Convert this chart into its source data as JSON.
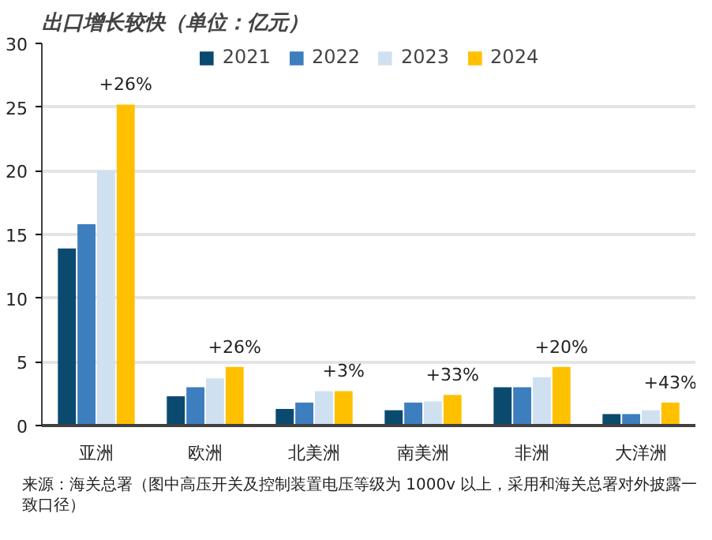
{
  "chart_data": {
    "type": "bar",
    "title": "出口增长较快（单位：亿元）",
    "categories": [
      "亚洲",
      "欧洲",
      "北美洲",
      "南美洲",
      "非洲",
      "大洋洲"
    ],
    "series": [
      {
        "name": "2021",
        "color": "#0b4a6f",
        "values": [
          13.9,
          2.3,
          1.3,
          1.2,
          3.0,
          0.9
        ]
      },
      {
        "name": "2022",
        "color": "#3d7ebf",
        "values": [
          15.8,
          3.0,
          1.8,
          1.8,
          3.0,
          0.9
        ]
      },
      {
        "name": "2023",
        "color": "#cfe0f1",
        "values": [
          20.0,
          3.7,
          2.7,
          1.9,
          3.8,
          1.2
        ]
      },
      {
        "name": "2024",
        "color": "#ffc000",
        "values": [
          25.2,
          4.6,
          2.7,
          2.4,
          4.6,
          1.8
        ]
      }
    ],
    "ylim": [
      0,
      30
    ],
    "yticks": [
      0,
      5,
      10,
      15,
      20,
      25,
      30
    ],
    "grid": "y",
    "legend": "top",
    "annotations": [
      "+26%",
      "+26%",
      "+3%",
      "+33%",
      "+20%",
      "+43%",
      "来源：海关总署（图中高压开关及控制装置电压等级为 1000v 以上，采用和海关总署对外披露一致口径）"
    ]
  }
}
